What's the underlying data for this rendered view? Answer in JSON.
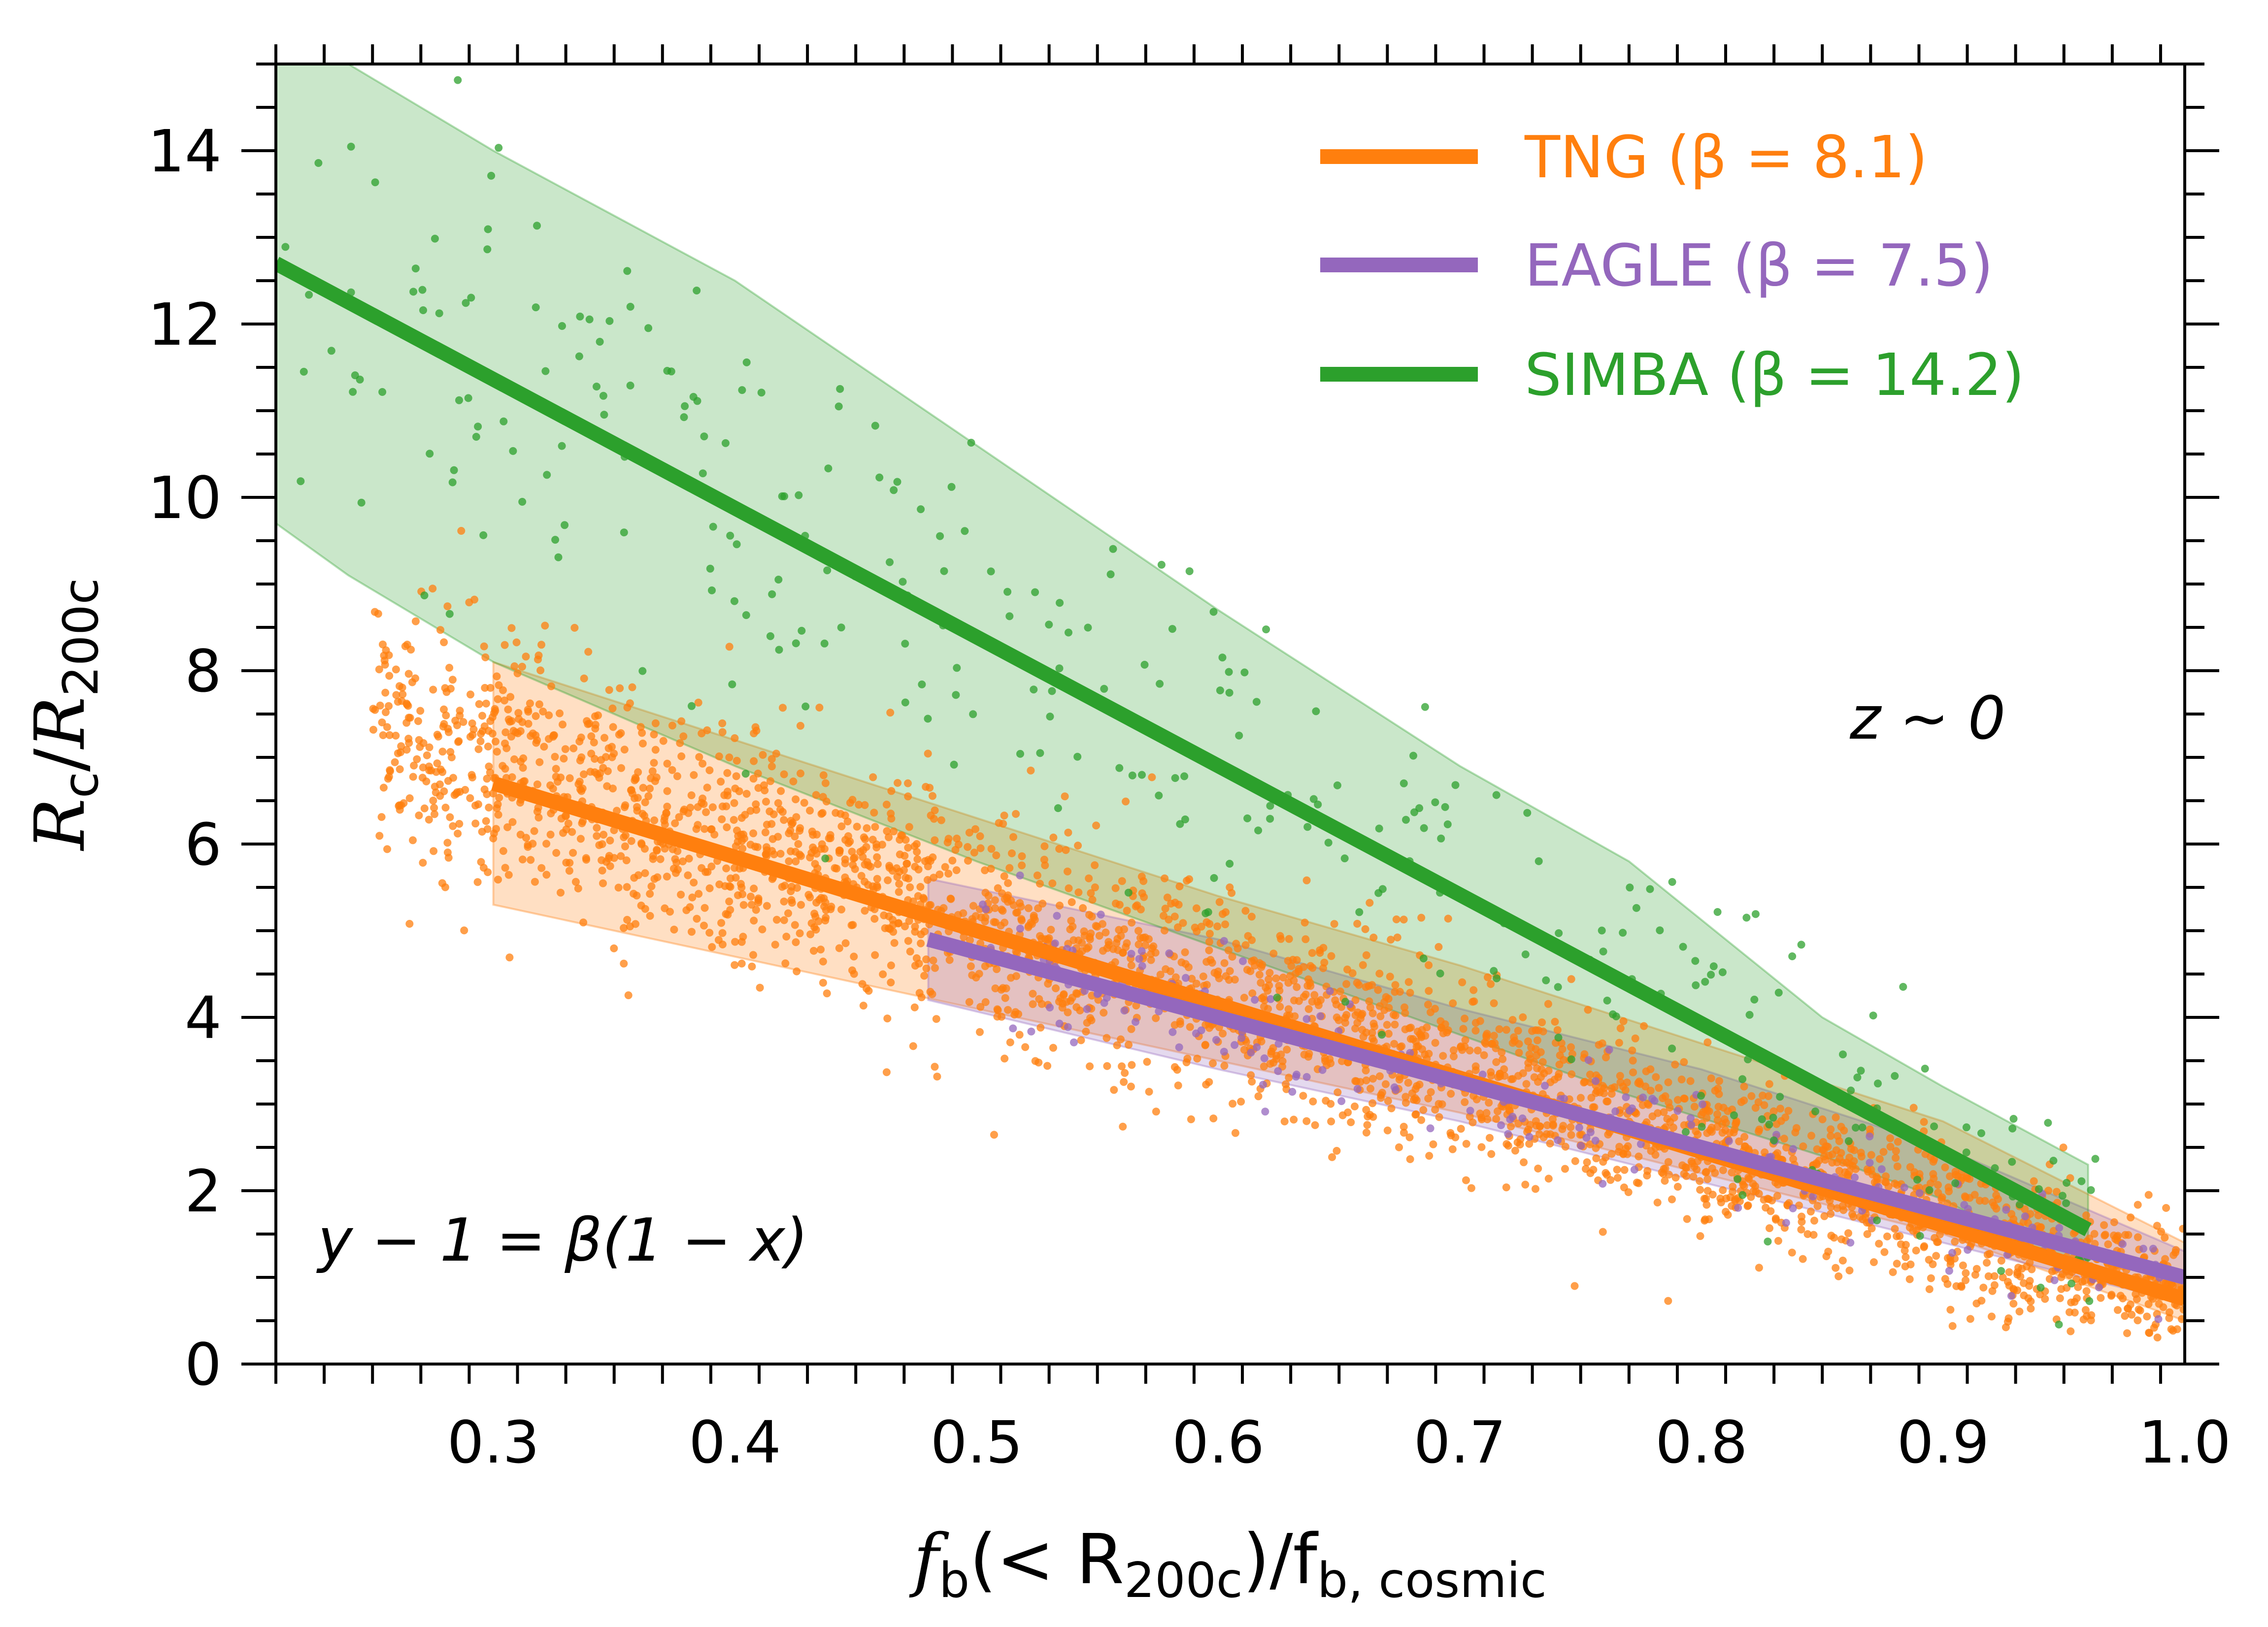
{
  "chart_data": {
    "type": "scatter",
    "xlim": [
      0.21,
      1.0
    ],
    "ylim": [
      0,
      15
    ],
    "x_ticks": [
      0.3,
      0.4,
      0.5,
      0.6,
      0.7,
      0.8,
      0.9,
      1.0
    ],
    "x_tick_labels": [
      "0.3",
      "0.4",
      "0.5",
      "0.6",
      "0.7",
      "0.8",
      "0.9",
      "1.0"
    ],
    "y_ticks": [
      0,
      2,
      4,
      6,
      8,
      10,
      12,
      14
    ],
    "y_tick_labels": [
      "0",
      "2",
      "4",
      "6",
      "8",
      "10",
      "12",
      "14"
    ],
    "xlabel": {
      "main": "f",
      "sub1": "b",
      "mid": "(< R",
      "sub2": "200c",
      "end": ")/f",
      "sub3": "b, cosmic"
    },
    "ylabel": {
      "r1": "R",
      "s1": "c",
      "slash": "/",
      "r2": "R",
      "s2": "200c"
    },
    "legend_position": "top-right",
    "annotations": {
      "redshift": "z ∼ 0",
      "relation": "y − 1 = β(1 − x)"
    },
    "series": [
      {
        "name": "TNG (β = 8.1)",
        "color": "#ff7f0e",
        "beta": 8.1,
        "fit_x": [
          0.3,
          1.0
        ],
        "fit_y": [
          6.7,
          0.75
        ],
        "band": {
          "x": [
            0.3,
            0.4,
            0.5,
            0.6,
            0.7,
            0.8,
            0.9,
            1.0
          ],
          "lower": [
            5.3,
            4.7,
            4.1,
            3.5,
            2.9,
            2.2,
            1.5,
            0.5
          ],
          "upper": [
            8.1,
            7.2,
            6.3,
            5.4,
            4.6,
            3.7,
            2.8,
            1.4
          ]
        },
        "scatter_center": {
          "x0": 0.3,
          "y0": 6.9,
          "x1": 1.0,
          "y1": 0.8
        },
        "scatter_range": [
          0.25,
          1.0
        ],
        "scatter_count": 3200,
        "scatter_sigma": 0.75
      },
      {
        "name": "EAGLE (β = 7.5)",
        "color": "#9467bd",
        "beta": 7.5,
        "fit_x": [
          0.48,
          1.0
        ],
        "fit_y": [
          4.9,
          1.0
        ],
        "band": {
          "x": [
            0.48,
            0.6,
            0.7,
            0.8,
            0.9,
            1.0
          ],
          "lower": [
            4.2,
            3.4,
            2.8,
            2.1,
            1.4,
            0.7
          ],
          "upper": [
            5.6,
            4.9,
            4.1,
            3.4,
            2.5,
            1.3
          ]
        },
        "scatter_center": {
          "x0": 0.48,
          "y0": 4.9,
          "x1": 1.0,
          "y1": 1.0
        },
        "scatter_range": [
          0.5,
          1.0
        ],
        "scatter_count": 220,
        "scatter_sigma": 0.45
      },
      {
        "name": "SIMBA (β = 14.2)",
        "color": "#2ca02c",
        "beta": 14.2,
        "fit_x": [
          0.21,
          0.96
        ],
        "fit_y": [
          12.7,
          1.55
        ],
        "band": {
          "x": [
            0.21,
            0.24,
            0.3,
            0.4,
            0.5,
            0.6,
            0.7,
            0.77,
            0.85,
            0.9,
            0.96
          ],
          "lower": [
            9.7,
            9.1,
            8.1,
            6.9,
            5.8,
            4.8,
            3.8,
            3.1,
            2.4,
            1.9,
            1.0
          ],
          "upper": [
            15.0,
            15.0,
            14.0,
            12.5,
            10.6,
            8.7,
            6.9,
            5.8,
            4.0,
            3.2,
            2.3
          ]
        },
        "scatter_center": {
          "x0": 0.21,
          "y0": 12.7,
          "x1": 0.96,
          "y1": 1.55
        },
        "scatter_range": [
          0.21,
          0.97
        ],
        "scatter_count": 330,
        "scatter_sigma": 1.5
      }
    ]
  }
}
